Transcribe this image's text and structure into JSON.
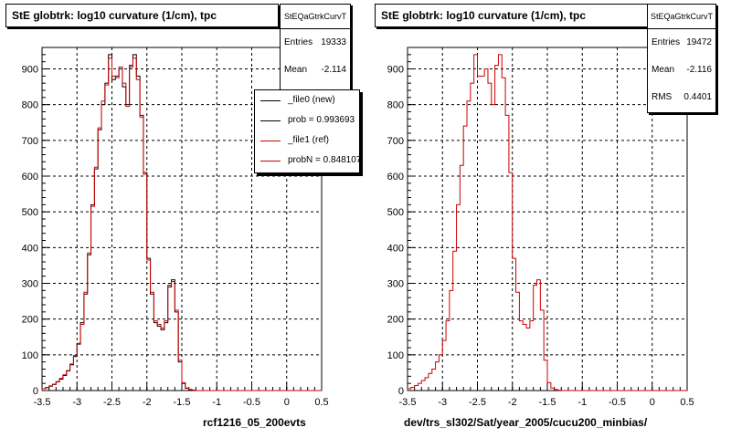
{
  "chart_data": [
    {
      "type": "histogram",
      "title": "StE globtrk: log10 curvature (1/cm), tpc",
      "xlabel": "rcf1216_05_200evts",
      "xlim": [
        -3.5,
        0.5
      ],
      "ylim": [
        0,
        960
      ],
      "xticks": [
        "-3.5",
        "-3",
        "-2.5",
        "-2",
        "-1.5",
        "-1",
        "-0.5",
        "0",
        "0.5"
      ],
      "yticks": [
        "0",
        "100",
        "200",
        "300",
        "400",
        "500",
        "600",
        "700",
        "800",
        "900"
      ],
      "grid": true,
      "bin_width": 0.05,
      "stats": {
        "name": "StEQaGtrkCurvT",
        "rows": [
          {
            "label": "Entries",
            "value": "19333"
          },
          {
            "label": "Mean",
            "value": "-2.114"
          }
        ]
      },
      "legend": {
        "position": "top-right",
        "entries": [
          {
            "label": "_file0 (new)",
            "color": "#000000"
          },
          {
            "label": "prob = 0.993693",
            "color": "#000000"
          },
          {
            "label": "_file1 (ref)",
            "color": "#cc0000"
          },
          {
            "label": "probN = 0.848107",
            "color": "#cc0000"
          }
        ]
      },
      "series": [
        {
          "name": "_file0 (new)",
          "color": "#000000",
          "x_start": -3.5,
          "values": [
            5,
            8,
            12,
            17,
            25,
            32,
            42,
            55,
            72,
            95,
            130,
            190,
            270,
            380,
            520,
            620,
            730,
            800,
            860,
            940,
            870,
            880,
            900,
            850,
            800,
            910,
            940,
            880,
            770,
            610,
            370,
            270,
            190,
            180,
            170,
            190,
            290,
            310,
            220,
            80,
            20,
            6,
            3,
            1,
            0,
            0,
            0,
            0,
            0,
            0,
            0,
            0,
            0,
            0,
            0,
            0,
            0,
            0,
            0,
            0,
            0,
            0,
            0,
            0,
            0,
            0,
            0,
            0,
            0,
            0,
            0,
            0,
            0,
            0,
            0,
            0,
            0,
            0,
            0,
            0
          ]
        },
        {
          "name": "_file1 (ref)",
          "color": "#cc0000",
          "x_start": -3.5,
          "values": [
            5,
            9,
            13,
            18,
            24,
            34,
            44,
            56,
            74,
            98,
            132,
            185,
            275,
            385,
            515,
            625,
            735,
            810,
            855,
            930,
            880,
            875,
            905,
            860,
            795,
            905,
            930,
            870,
            765,
            605,
            365,
            275,
            195,
            185,
            175,
            195,
            295,
            305,
            225,
            85,
            22,
            7,
            3,
            1,
            0,
            0,
            0,
            0,
            0,
            0,
            0,
            0,
            0,
            0,
            0,
            0,
            0,
            0,
            0,
            0,
            0,
            0,
            0,
            0,
            0,
            0,
            0,
            0,
            0,
            0,
            0,
            0,
            0,
            0,
            0,
            0,
            0,
            0,
            0,
            0
          ]
        }
      ]
    },
    {
      "type": "histogram",
      "title": "StE globtrk: log10 curvature (1/cm), tpc",
      "xlabel": "dev/trs_sl302/Sat/year_2005/cucu200_minbias/",
      "xlim": [
        -3.5,
        0.5
      ],
      "ylim": [
        0,
        960
      ],
      "xticks": [
        "-3.5",
        "-3",
        "-2.5",
        "-2",
        "-1.5",
        "-1",
        "-0.5",
        "0",
        "0.5"
      ],
      "yticks": [
        "0",
        "100",
        "200",
        "300",
        "400",
        "500",
        "600",
        "700",
        "800",
        "900"
      ],
      "grid": true,
      "bin_width": 0.05,
      "stats": {
        "name": "StEQaGtrkCurvT",
        "rows": [
          {
            "label": "Entries",
            "value": "19472"
          },
          {
            "label": "Mean",
            "value": "-2.116"
          },
          {
            "label": "RMS",
            "value": "0.4401"
          }
        ]
      },
      "series": [
        {
          "name": "",
          "color": "#cc0000",
          "x_start": -3.5,
          "values": [
            5,
            9,
            14,
            20,
            28,
            36,
            48,
            60,
            80,
            100,
            140,
            195,
            280,
            390,
            520,
            630,
            740,
            810,
            860,
            940,
            880,
            880,
            900,
            860,
            800,
            910,
            940,
            875,
            770,
            610,
            370,
            275,
            195,
            185,
            175,
            195,
            295,
            310,
            225,
            85,
            22,
            7,
            3,
            1,
            0,
            0,
            0,
            0,
            0,
            0,
            0,
            0,
            0,
            0,
            0,
            0,
            0,
            0,
            0,
            0,
            0,
            0,
            0,
            0,
            0,
            0,
            0,
            0,
            0,
            0,
            0,
            0,
            0,
            0,
            0,
            0,
            0,
            0,
            0,
            0
          ]
        }
      ]
    }
  ]
}
